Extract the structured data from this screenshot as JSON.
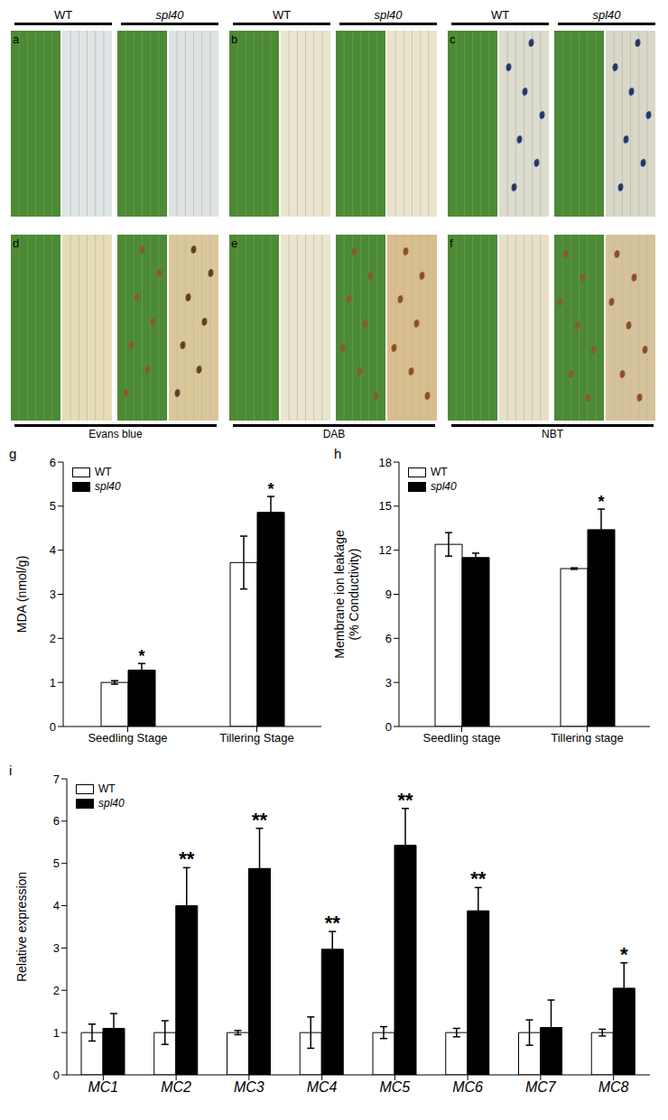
{
  "photo_panels": {
    "top_row": {
      "panels": [
        "a",
        "b",
        "c"
      ],
      "header": [
        "WT",
        "spl40"
      ]
    },
    "bottom_row": {
      "panels": [
        "d",
        "e",
        "f"
      ],
      "stains": [
        "Evans blue",
        "DAB",
        "NBT"
      ]
    }
  },
  "chart_data": [
    {
      "type": "bar",
      "title": "g",
      "ylabel": [
        "MDA (nmol/g)"
      ],
      "categories": [
        "Seedling Stage",
        "Tillering Stage"
      ],
      "series": [
        {
          "name": "WT",
          "color": "#ffffff",
          "values": [
            1.0,
            3.72
          ],
          "errors": [
            0.04,
            0.6
          ]
        },
        {
          "name": "spl40",
          "color": "#000000",
          "values": [
            1.28,
            4.86
          ],
          "errors": [
            0.15,
            0.36
          ],
          "significance": [
            "*",
            "*"
          ]
        }
      ],
      "ylim": [
        0,
        6
      ],
      "yticks": [
        0,
        1,
        2,
        3,
        4,
        5,
        6
      ],
      "legend": "upper left"
    },
    {
      "type": "bar",
      "title": "h",
      "ylabel": [
        "Membrane ion leakage",
        "(% Conductivity)"
      ],
      "categories": [
        "Seedling stage",
        "Tillering stage"
      ],
      "series": [
        {
          "name": "WT",
          "color": "#ffffff",
          "values": [
            12.4,
            10.75
          ],
          "errors": [
            0.8,
            0.05
          ]
        },
        {
          "name": "spl40",
          "color": "#000000",
          "values": [
            11.5,
            13.4
          ],
          "errors": [
            0.3,
            1.4
          ],
          "significance": [
            null,
            "*"
          ]
        }
      ],
      "ylim": [
        0,
        18
      ],
      "yticks": [
        0,
        3,
        6,
        9,
        12,
        15,
        18
      ],
      "legend": "upper left"
    },
    {
      "type": "bar",
      "title": "i",
      "ylabel": [
        "Relative expression"
      ],
      "categories": [
        "MC1",
        "MC2",
        "MC3",
        "MC4",
        "MC5",
        "MC6",
        "MC7",
        "MC8"
      ],
      "series": [
        {
          "name": "WT",
          "color": "#ffffff",
          "values": [
            1.0,
            1.0,
            1.0,
            1.0,
            1.0,
            1.0,
            1.0,
            1.0
          ],
          "errors": [
            0.2,
            0.28,
            0.05,
            0.37,
            0.14,
            0.1,
            0.3,
            0.08
          ]
        },
        {
          "name": "spl40",
          "color": "#000000",
          "values": [
            1.1,
            4.0,
            4.88,
            2.97,
            5.43,
            3.88,
            1.12,
            2.05
          ],
          "errors": [
            0.35,
            0.9,
            0.95,
            0.42,
            0.87,
            0.55,
            0.65,
            0.6
          ],
          "significance": [
            null,
            "**",
            "**",
            "**",
            "**",
            "**",
            null,
            "*"
          ]
        }
      ],
      "ylim": [
        0,
        7
      ],
      "yticks": [
        0,
        1,
        2,
        3,
        4,
        5,
        6,
        7
      ],
      "legend": "upper left"
    }
  ]
}
